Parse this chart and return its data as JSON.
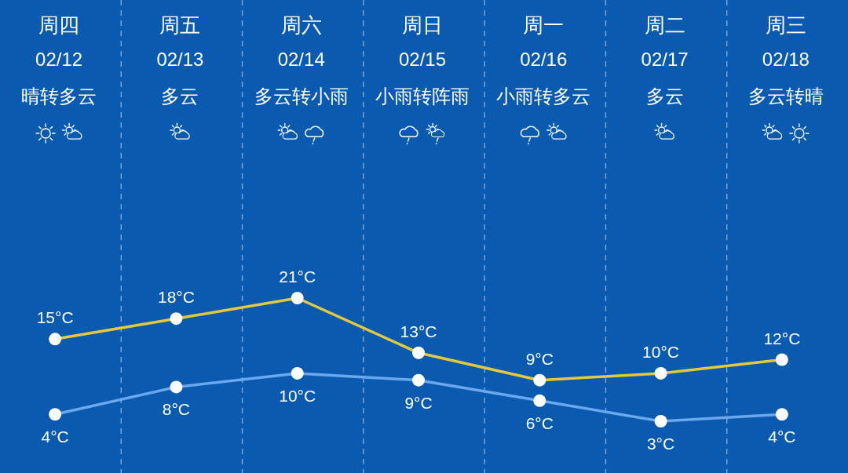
{
  "chart_data": {
    "type": "line",
    "categories": [
      "周四\n02/12\n晴转多云",
      "周五\n02/13\n多云",
      "周六\n02/14\n多云转小雨",
      "周日\n02/15\n小雨转阵雨",
      "周一\n02/16\n小雨转多云",
      "周二\n02/17\n多云",
      "周三\n02/18\n多云转晴"
    ],
    "series": [
      {
        "color": "#e4c93c",
        "values": [
          15,
          18,
          21,
          13,
          9,
          10,
          12
        ],
        "value_labels": [
          "15°C",
          "18°C",
          "21°C",
          "13°C",
          "9°C",
          "10°C",
          "12°C"
        ]
      },
      {
        "color": "#6aa8f0",
        "values": [
          4,
          8,
          10,
          9,
          6,
          3,
          4
        ],
        "value_labels": [
          "4°C",
          "8°C",
          "10°C",
          "9°C",
          "6°C",
          "3°C",
          "4°C"
        ]
      }
    ],
    "tick_labels": "x",
    "grid": "x",
    "marker": "circle",
    "line_style": "solid"
  }
}
